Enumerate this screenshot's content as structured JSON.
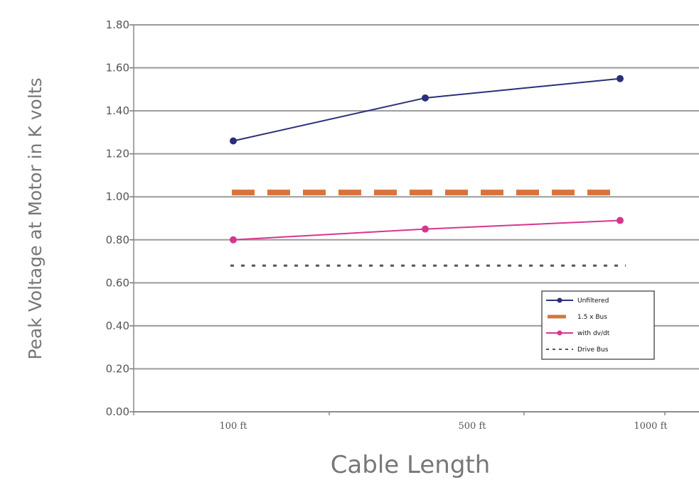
{
  "chart_data": {
    "type": "line",
    "title": "",
    "xlabel": "Cable Length",
    "ylabel": "Peak Voltage at Motor in K volts",
    "categories": [
      "100 ft",
      "500 ft",
      "1000 ft"
    ],
    "ylim": [
      0,
      1.8
    ],
    "y_ticks": [
      "0.00",
      "0.20",
      "0.40",
      "0.60",
      "0.80",
      "1.00",
      "1.20",
      "1.40",
      "1.60",
      "1.80"
    ],
    "grid": true,
    "legend_position": "lower-right",
    "series": [
      {
        "name": "Unfiltered",
        "values": [
          1.26,
          1.46,
          1.55
        ],
        "color": "#2b2f7a",
        "style": "solid",
        "marker": "circle"
      },
      {
        "name": "1.5 x Bus",
        "values": [
          1.02,
          1.02,
          1.02
        ],
        "color": "#d9733b",
        "style": "dashed-thick",
        "marker": "none"
      },
      {
        "name": "with dv/dt",
        "values": [
          0.8,
          0.85,
          0.89
        ],
        "color": "#d6368f",
        "style": "solid",
        "marker": "circle"
      },
      {
        "name": "Drive Bus",
        "values": [
          0.68,
          0.68,
          0.68
        ],
        "color": "#555555",
        "style": "dotted",
        "marker": "none"
      }
    ]
  }
}
